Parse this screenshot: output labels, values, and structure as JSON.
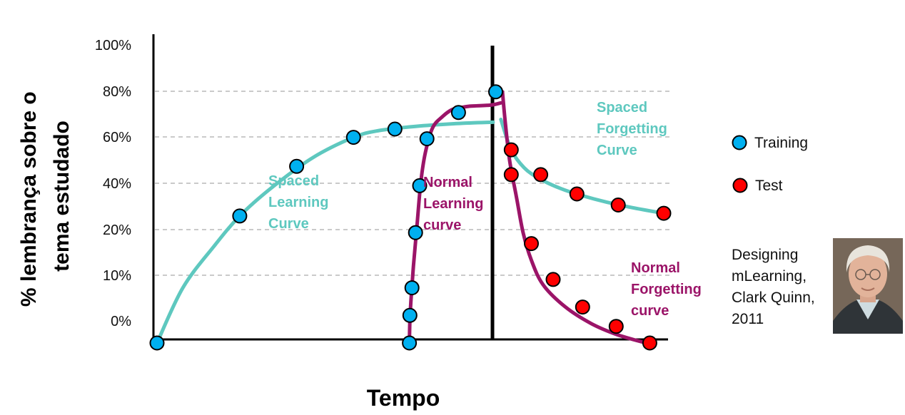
{
  "colors": {
    "spaced": "#5ec8bf",
    "normal": "#9b1468",
    "training_marker": "#00b0f0",
    "test_marker": "#ff0000",
    "axis": "#000000",
    "grid": "#b8b8b8"
  },
  "chart_data": {
    "type": "line",
    "xlabel": "Tempo",
    "ylabel_lines": [
      "% lembrança sobre o",
      "tema estudado"
    ],
    "y_ticks": [
      "100%",
      "80%",
      "60%",
      "40%",
      "20%",
      "10%",
      "0%"
    ],
    "grid": "horizontal dashed",
    "legend": {
      "placement": "right",
      "entries": [
        {
          "label": "Training",
          "marker": "training"
        },
        {
          "label": "Test",
          "marker": "test"
        }
      ]
    },
    "annotations": [
      {
        "id": "spaced-learning",
        "lines": [
          "Spaced",
          "Learning",
          "Curve"
        ],
        "color": "spaced"
      },
      {
        "id": "normal-learning",
        "lines": [
          "Normal",
          "Learning",
          "curve"
        ],
        "color": "normal"
      },
      {
        "id": "spaced-forgetting",
        "lines": [
          "Spaced",
          "Forgetting",
          "Curve"
        ],
        "color": "spaced"
      },
      {
        "id": "normal-forgetting",
        "lines": [
          "Normal",
          "Forgetting",
          "curve"
        ],
        "color": "normal"
      }
    ],
    "series": [
      {
        "name": "Spaced Learning Curve",
        "color": "spaced",
        "marker": "training",
        "curve": [
          [
            0,
            -0.08
          ],
          [
            5,
            0.12
          ],
          [
            11,
            0.27
          ],
          [
            16,
            0.38
          ],
          [
            22,
            0.48
          ],
          [
            30,
            0.59
          ],
          [
            38,
            0.665
          ],
          [
            43,
            0.69
          ],
          [
            50,
            0.705
          ],
          [
            58,
            0.715
          ],
          [
            65,
            0.72
          ]
        ],
        "points": [
          [
            0,
            -0.08
          ],
          [
            16,
            0.38
          ],
          [
            27,
            0.56
          ],
          [
            38,
            0.665
          ],
          [
            46,
            0.695
          ]
        ]
      },
      {
        "name": "Normal Learning Curve",
        "color": "normal",
        "marker": "training",
        "curve": [
          [
            48.8,
            -0.08
          ],
          [
            48.9,
            0.0
          ],
          [
            49.1,
            0.07
          ],
          [
            49.6,
            0.2
          ],
          [
            50.3,
            0.35
          ],
          [
            51.0,
            0.5
          ],
          [
            51.9,
            0.61
          ],
          [
            53.3,
            0.7
          ],
          [
            55.2,
            0.74
          ],
          [
            57.0,
            0.765
          ],
          [
            58.5,
            0.772
          ],
          [
            60.5,
            0.778
          ],
          [
            64.5,
            0.782
          ],
          [
            66.5,
            0.79
          ]
        ],
        "points": [
          [
            48.8,
            -0.08
          ],
          [
            48.9,
            0.02
          ],
          [
            49.3,
            0.12
          ],
          [
            50.0,
            0.32
          ],
          [
            50.8,
            0.49
          ],
          [
            52.2,
            0.66
          ],
          [
            58.3,
            0.755
          ],
          [
            65.5,
            0.83
          ]
        ]
      },
      {
        "name": "Spaced Forgetting Curve",
        "color": "spaced",
        "marker": "test",
        "curve": [
          [
            66.5,
            0.73
          ],
          [
            68.5,
            0.62
          ],
          [
            71.0,
            0.555
          ],
          [
            74.0,
            0.515
          ],
          [
            78.0,
            0.48
          ],
          [
            82.0,
            0.455
          ],
          [
            87.0,
            0.43
          ],
          [
            92.0,
            0.41
          ],
          [
            98.0,
            0.39
          ]
        ],
        "points": [
          [
            68.5,
            0.62
          ],
          [
            74.2,
            0.53
          ],
          [
            81.2,
            0.46
          ],
          [
            89.2,
            0.42
          ],
          [
            98.0,
            0.39
          ]
        ]
      },
      {
        "name": "Normal Forgetting Curve",
        "color": "normal",
        "marker": "test",
        "curve": [
          [
            66.8,
            0.83
          ],
          [
            67.4,
            0.71
          ],
          [
            68.2,
            0.58
          ],
          [
            69.5,
            0.45
          ],
          [
            70.8,
            0.32
          ],
          [
            72.4,
            0.22
          ],
          [
            74.7,
            0.13
          ],
          [
            79.0,
            0.05
          ],
          [
            84.0,
            -0.01
          ],
          [
            89.0,
            -0.05
          ],
          [
            94.5,
            -0.08
          ]
        ],
        "points": [
          [
            68.5,
            0.53
          ],
          [
            72.4,
            0.28
          ],
          [
            76.6,
            0.15
          ],
          [
            82.3,
            0.05
          ],
          [
            88.8,
            -0.02
          ],
          [
            95.3,
            -0.08
          ]
        ]
      }
    ]
  },
  "credit": {
    "lines": [
      "Designing",
      "mLearning,",
      "Clark Quinn,",
      "2011"
    ],
    "photo_alt": "author photo"
  }
}
